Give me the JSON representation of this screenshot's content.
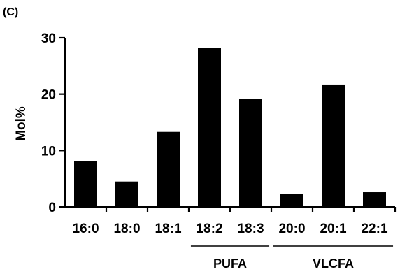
{
  "chart_data": {
    "type": "bar",
    "panel_label": "(C)",
    "title": "",
    "xlabel": "",
    "ylabel": "Mol%",
    "ylim": [
      0,
      30
    ],
    "yticks": [
      "0",
      "10",
      "20",
      "30"
    ],
    "grid": false,
    "legend": "none",
    "bar_color": "#000000",
    "categories": [
      "16:0",
      "18:0",
      "18:1",
      "18:2",
      "18:3",
      "20:0",
      "20:1",
      "22:1"
    ],
    "values": [
      8.1,
      4.5,
      13.3,
      28.2,
      19.1,
      2.3,
      21.7,
      2.6
    ],
    "groups": [
      {
        "label": "PUFA",
        "categories": [
          "18:2",
          "18:3"
        ]
      },
      {
        "label": "VLCFA",
        "categories": [
          "20:0",
          "20:1",
          "22:1"
        ]
      }
    ]
  }
}
